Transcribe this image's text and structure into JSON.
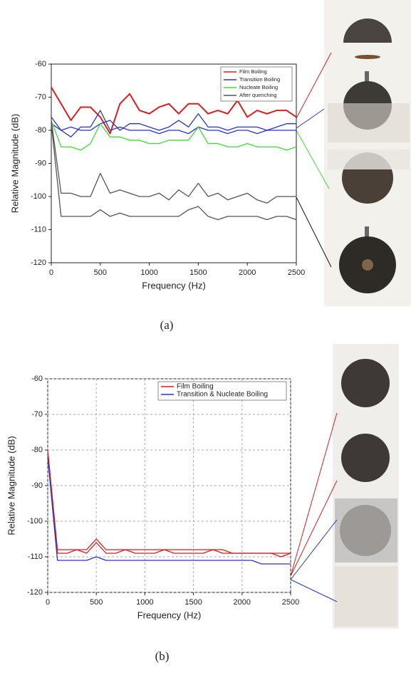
{
  "chart_data": [
    {
      "type": "line",
      "caption": "(a)",
      "x_label": "Frequency (Hz)",
      "y_label": "Relative Magnitude (dB)",
      "x": [
        0,
        100,
        200,
        300,
        400,
        500,
        600,
        700,
        800,
        900,
        1000,
        1100,
        1200,
        1300,
        1400,
        1500,
        1600,
        1700,
        1800,
        1900,
        2000,
        2100,
        2200,
        2300,
        2400,
        2500
      ],
      "xlim": [
        0,
        2500
      ],
      "ylim": [
        -120,
        -60
      ],
      "xticks": [
        0,
        500,
        1000,
        1500,
        2000,
        2500
      ],
      "yticks": [
        -120,
        -110,
        -100,
        -90,
        -80,
        -70,
        -60
      ],
      "grid": false,
      "legend": "upper right",
      "series": [
        {
          "name": "Film Boiling",
          "color": "#d42020",
          "values": [
            -67,
            -72,
            -77,
            -73,
            -73,
            -76,
            -81,
            -72,
            -69,
            -74,
            -75,
            -73,
            -72,
            -75,
            -72,
            -72,
            -75,
            -74,
            -75,
            -71,
            -76,
            -74,
            -75,
            -74,
            -74,
            -76
          ]
        },
        {
          "name": "Transition Boiling",
          "color": "#2a35c8",
          "values": [
            -76,
            -80,
            -79,
            -80,
            -80,
            -78,
            -77,
            -80,
            -78,
            -78,
            -79,
            -80,
            -79,
            -77,
            -79,
            -75,
            -79,
            -79,
            -80,
            -79,
            -79,
            -79,
            -80,
            -79,
            -78,
            -78
          ]
        },
        {
          "color": "#2a35c8",
          "values": [
            -78,
            -80,
            -82,
            -79,
            -79,
            -74,
            -80,
            -79,
            -80,
            -80,
            -80,
            -81,
            -80,
            -80,
            -81,
            -79,
            -80,
            -80,
            -81,
            -80,
            -80,
            -81,
            -80,
            -80,
            -80,
            -80
          ]
        },
        {
          "name": "Nucleate Boiling",
          "color": "#3ddc3d",
          "values": [
            -77,
            -85,
            -85,
            -86,
            -84,
            -78,
            -82,
            -82,
            -83,
            -83,
            -84,
            -84,
            -83,
            -83,
            -83,
            -79,
            -84,
            -84,
            -85,
            -85,
            -84,
            -85,
            -85,
            -85,
            -86,
            -85
          ]
        },
        {
          "name": "After quenching",
          "color": "#555555",
          "values": [
            -77,
            -99,
            -99,
            -100,
            -100,
            -93,
            -99,
            -98,
            -99,
            -100,
            -100,
            -99,
            -101,
            -98,
            -100,
            -96,
            -100,
            -99,
            -101,
            -100,
            -99,
            -101,
            -102,
            -100,
            -100,
            -100
          ]
        },
        {
          "color": "#555555",
          "values": [
            -78,
            -106,
            -106,
            -106,
            -106,
            -104,
            -106,
            -105,
            -106,
            -106,
            -106,
            -106,
            -106,
            -106,
            -104,
            -103,
            -106,
            -107,
            -106,
            -106,
            -106,
            -106,
            -107,
            -106,
            -106,
            -107
          ]
        }
      ]
    },
    {
      "type": "line",
      "caption": "(b)",
      "x_label": "Frequency (Hz)",
      "y_label": "Relative Magnitude (dB)",
      "x": [
        0,
        100,
        200,
        300,
        400,
        500,
        600,
        700,
        800,
        900,
        1000,
        1100,
        1200,
        1300,
        1400,
        1500,
        1600,
        1700,
        1800,
        1900,
        2000,
        2100,
        2200,
        2300,
        2400,
        2500
      ],
      "xlim": [
        0,
        2500
      ],
      "ylim": [
        -120,
        -60
      ],
      "xticks": [
        0,
        500,
        1000,
        1500,
        2000,
        2500
      ],
      "yticks": [
        -120,
        -110,
        -100,
        -90,
        -80,
        -70,
        -60
      ],
      "grid": true,
      "legend": "upper right",
      "series": [
        {
          "name": "Film Boiling",
          "color": "#d42020",
          "values": [
            -80,
            -108,
            -108,
            -108,
            -108,
            -105,
            -108,
            -108,
            -108,
            -108,
            -108,
            -108,
            -108,
            -108,
            -108,
            -108,
            -108,
            -108,
            -108,
            -109,
            -109,
            -109,
            -109,
            -109,
            -109,
            -109
          ]
        },
        {
          "color": "#d42020",
          "values": [
            -81,
            -109,
            -109,
            -108,
            -109,
            -106,
            -109,
            -109,
            -108,
            -109,
            -109,
            -109,
            -108,
            -109,
            -109,
            -109,
            -109,
            -108,
            -109,
            -109,
            -109,
            -109,
            -109,
            -109,
            -110,
            -109
          ]
        },
        {
          "name": "Transition & Nucleate Boiling",
          "color": "#2a35c8",
          "values": [
            -82,
            -111,
            -111,
            -111,
            -111,
            -110,
            -111,
            -111,
            -111,
            -111,
            -111,
            -111,
            -111,
            -111,
            -111,
            -111,
            -111,
            -111,
            -111,
            -111,
            -111,
            -111,
            -112,
            -112,
            -112,
            -112
          ]
        }
      ]
    }
  ]
}
